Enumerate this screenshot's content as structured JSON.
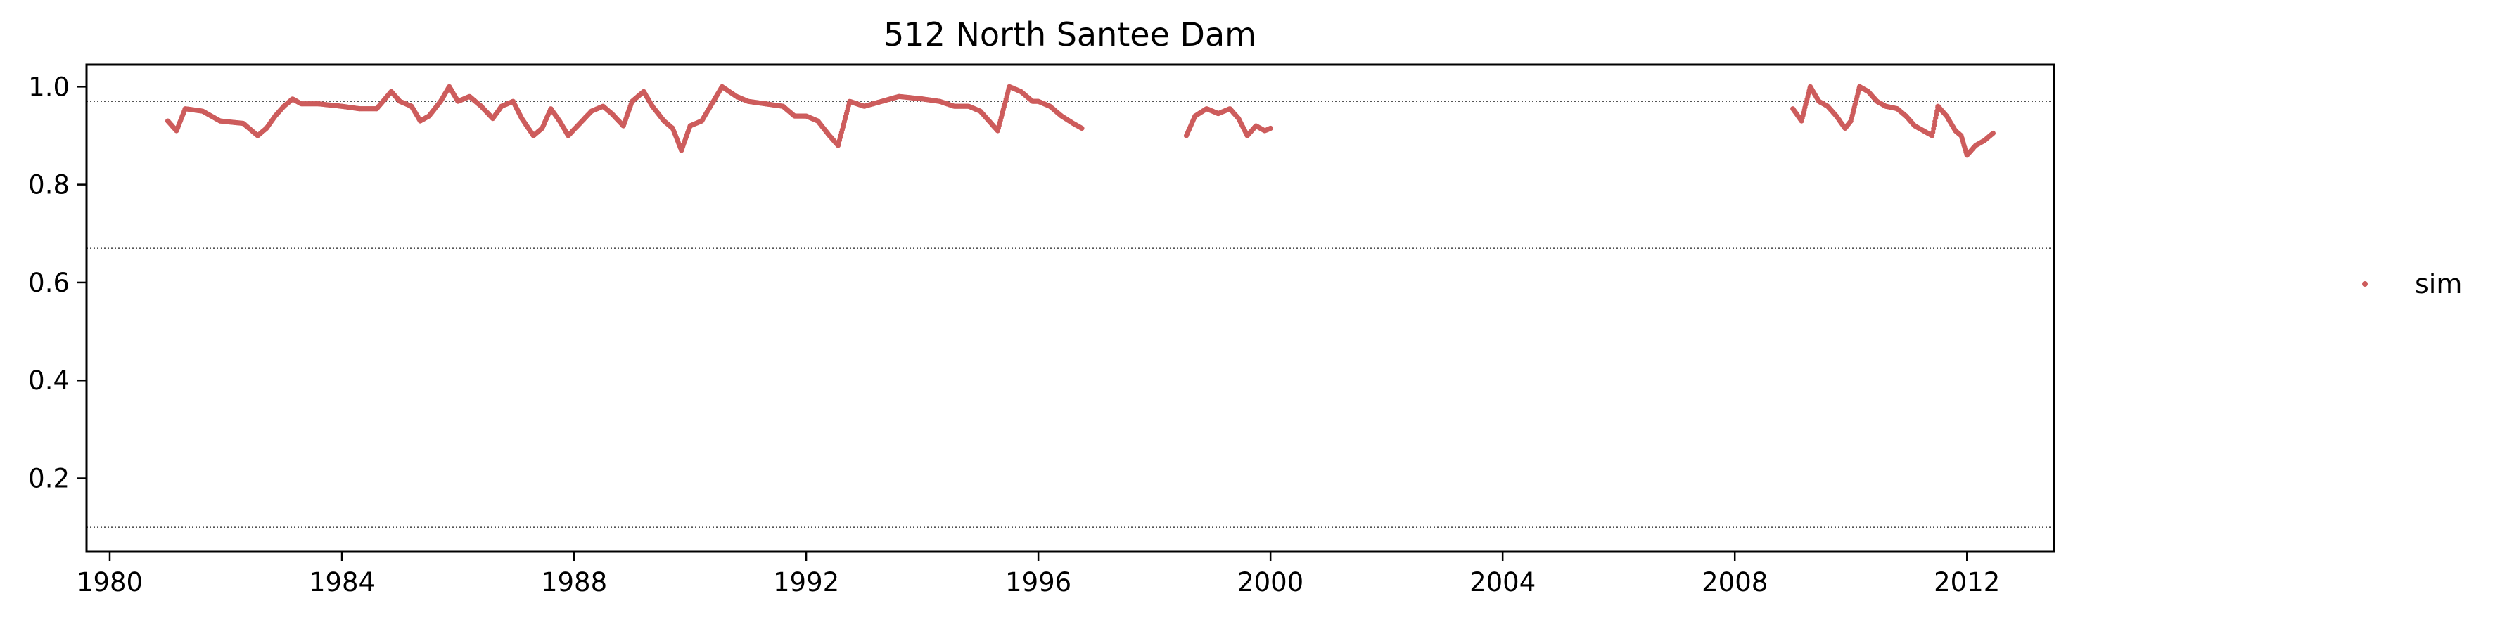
{
  "chart_data": {
    "type": "scatter",
    "title": "512  North Santee Dam",
    "xlabel": "",
    "ylabel": "",
    "xlim": [
      1979.6,
      2013.5
    ],
    "ylim": [
      0.05,
      1.045
    ],
    "xticks": [
      1980,
      1984,
      1988,
      1992,
      1996,
      2000,
      2004,
      2008,
      2012
    ],
    "xtick_labels": [
      "1980",
      "1984",
      "1988",
      "1992",
      "1996",
      "2000",
      "2004",
      "2008",
      "2012"
    ],
    "yticks": [
      0.2,
      0.4,
      0.6,
      0.8,
      1.0
    ],
    "ytick_labels": [
      "0.2",
      "0.4",
      "0.6",
      "0.8",
      "1.0"
    ],
    "hlines": [
      0.97,
      0.67,
      0.1
    ],
    "grid": false,
    "legend_position": "right",
    "colors": {
      "sim": "#cd5c5c",
      "hline": "#555555",
      "axes": "#000000"
    },
    "series": [
      {
        "name": "sim",
        "segments": [
          [
            [
              1981.0,
              0.93
            ],
            [
              1981.15,
              0.91
            ],
            [
              1981.3,
              0.955
            ],
            [
              1981.6,
              0.95
            ],
            [
              1981.9,
              0.93
            ],
            [
              1982.3,
              0.925
            ],
            [
              1982.55,
              0.9
            ],
            [
              1982.7,
              0.915
            ],
            [
              1982.85,
              0.94
            ],
            [
              1983.0,
              0.96
            ],
            [
              1983.15,
              0.975
            ],
            [
              1983.3,
              0.965
            ],
            [
              1983.6,
              0.965
            ],
            [
              1984.0,
              0.96
            ],
            [
              1984.3,
              0.955
            ],
            [
              1984.6,
              0.955
            ],
            [
              1984.85,
              0.99
            ],
            [
              1985.0,
              0.97
            ],
            [
              1985.2,
              0.96
            ],
            [
              1985.35,
              0.93
            ],
            [
              1985.5,
              0.94
            ],
            [
              1985.7,
              0.97
            ],
            [
              1985.85,
              1.0
            ],
            [
              1986.0,
              0.97
            ],
            [
              1986.2,
              0.98
            ],
            [
              1986.4,
              0.96
            ],
            [
              1986.6,
              0.935
            ],
            [
              1986.75,
              0.96
            ],
            [
              1986.95,
              0.97
            ],
            [
              1987.1,
              0.935
            ],
            [
              1987.3,
              0.9
            ],
            [
              1987.45,
              0.915
            ],
            [
              1987.6,
              0.955
            ],
            [
              1987.75,
              0.93
            ],
            [
              1987.9,
              0.9
            ],
            [
              1988.1,
              0.925
            ],
            [
              1988.3,
              0.95
            ],
            [
              1988.5,
              0.96
            ],
            [
              1988.65,
              0.945
            ],
            [
              1988.85,
              0.92
            ],
            [
              1989.0,
              0.97
            ],
            [
              1989.2,
              0.99
            ],
            [
              1989.35,
              0.96
            ],
            [
              1989.55,
              0.93
            ],
            [
              1989.7,
              0.915
            ],
            [
              1989.85,
              0.87
            ],
            [
              1990.0,
              0.92
            ],
            [
              1990.2,
              0.93
            ],
            [
              1990.4,
              0.97
            ],
            [
              1990.55,
              1.0
            ],
            [
              1990.8,
              0.98
            ],
            [
              1991.0,
              0.97
            ],
            [
              1991.3,
              0.965
            ],
            [
              1991.6,
              0.96
            ],
            [
              1991.8,
              0.94
            ],
            [
              1992.0,
              0.94
            ],
            [
              1992.2,
              0.93
            ],
            [
              1992.4,
              0.9
            ],
            [
              1992.55,
              0.88
            ],
            [
              1992.75,
              0.97
            ],
            [
              1993.0,
              0.96
            ],
            [
              1993.3,
              0.97
            ],
            [
              1993.6,
              0.98
            ],
            [
              1994.0,
              0.975
            ],
            [
              1994.3,
              0.97
            ],
            [
              1994.55,
              0.96
            ],
            [
              1994.8,
              0.96
            ],
            [
              1995.0,
              0.95
            ],
            [
              1995.15,
              0.93
            ],
            [
              1995.3,
              0.91
            ],
            [
              1995.5,
              1.0
            ],
            [
              1995.7,
              0.99
            ],
            [
              1995.9,
              0.97
            ],
            [
              1996.0,
              0.97
            ],
            [
              1996.2,
              0.96
            ],
            [
              1996.4,
              0.94
            ],
            [
              1996.6,
              0.925
            ],
            [
              1996.75,
              0.915
            ]
          ],
          [
            [
              1998.55,
              0.9
            ],
            [
              1998.7,
              0.94
            ],
            [
              1998.9,
              0.955
            ],
            [
              1999.1,
              0.945
            ],
            [
              1999.3,
              0.955
            ],
            [
              1999.45,
              0.935
            ],
            [
              1999.6,
              0.9
            ],
            [
              1999.75,
              0.92
            ],
            [
              1999.9,
              0.91
            ],
            [
              2000.0,
              0.915
            ]
          ],
          [
            [
              2009.0,
              0.955
            ],
            [
              2009.15,
              0.93
            ],
            [
              2009.3,
              1.0
            ],
            [
              2009.45,
              0.97
            ],
            [
              2009.6,
              0.96
            ],
            [
              2009.75,
              0.94
            ],
            [
              2009.9,
              0.915
            ],
            [
              2010.0,
              0.93
            ],
            [
              2010.15,
              1.0
            ],
            [
              2010.3,
              0.99
            ],
            [
              2010.45,
              0.97
            ],
            [
              2010.6,
              0.96
            ],
            [
              2010.8,
              0.955
            ],
            [
              2010.95,
              0.94
            ],
            [
              2011.1,
              0.92
            ],
            [
              2011.25,
              0.91
            ],
            [
              2011.4,
              0.9
            ],
            [
              2011.5,
              0.96
            ],
            [
              2011.65,
              0.94
            ],
            [
              2011.8,
              0.91
            ],
            [
              2011.9,
              0.9
            ],
            [
              2012.0,
              0.86
            ],
            [
              2012.15,
              0.88
            ],
            [
              2012.3,
              0.89
            ],
            [
              2012.45,
              0.905
            ]
          ]
        ]
      }
    ]
  }
}
